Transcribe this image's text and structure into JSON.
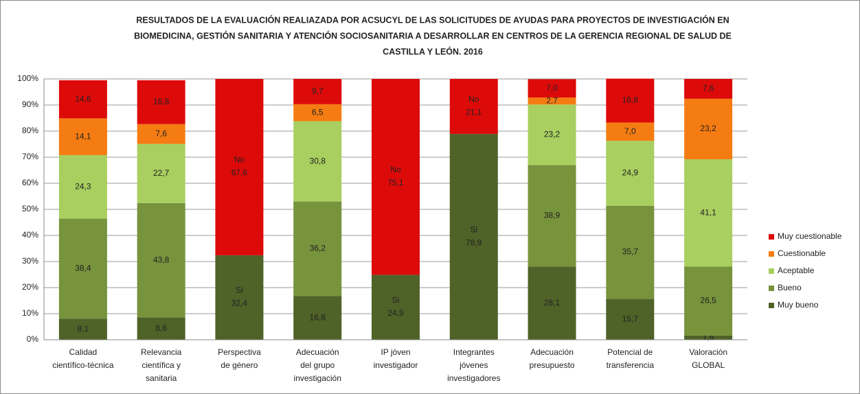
{
  "chart_data": {
    "type": "stacked_bar",
    "title": [
      "RESULTADOS DE LA EVALUACIÓN  REALIAZADA POR ACSUCYL DE LAS SOLICITUDES DE AYUDAS PARA PROYECTOS DE INVESTIGACIÓN EN",
      "BIOMEDICINA, GESTIÓN SANITARIA Y ATENCIÓN SOCIOSANITARIA A DESARROLLAR EN CENTROS DE LA GERENCIA REGIONAL DE SALUD DE",
      "CASTILLA Y LEÓN. 2016"
    ],
    "categories": [
      [
        "Calidad",
        "científico-técnica"
      ],
      [
        "Relevancia",
        "científica y",
        "sanitaria"
      ],
      [
        "Perspectiva",
        "de género"
      ],
      [
        "Adecuación",
        "del grupo",
        "investigación"
      ],
      [
        "IP jóven",
        "investigador"
      ],
      [
        "Integrantes",
        "jóvenes",
        "investigadores"
      ],
      [
        "Adecuación",
        "presupuesto"
      ],
      [
        "Potencial de",
        "transferencia"
      ],
      [
        "Valoración",
        "GLOBAL"
      ]
    ],
    "series": [
      {
        "name": "Muy bueno",
        "color": "#4f6228",
        "values": [
          8.1,
          8.6,
          32.4,
          16.8,
          24.9,
          78.9,
          28.1,
          15.7,
          1.6
        ],
        "value_labels": [
          "8,1",
          "8,6",
          "32,4",
          "16,8",
          "24,9",
          "78,9",
          "28,1",
          "15,7",
          "1,6"
        ],
        "segment_prefixes": [
          null,
          null,
          "Si",
          null,
          "Si",
          "Si",
          null,
          null,
          null
        ]
      },
      {
        "name": "Bueno",
        "color": "#77933c",
        "values": [
          38.4,
          43.8,
          null,
          36.2,
          null,
          null,
          38.9,
          35.7,
          26.5
        ],
        "value_labels": [
          "38,4",
          "43,8",
          null,
          "36,2",
          null,
          null,
          "38,9",
          "35,7",
          "26,5"
        ]
      },
      {
        "name": "Aceptable",
        "color": "#a8cf5f",
        "values": [
          24.3,
          22.7,
          null,
          30.8,
          null,
          null,
          23.2,
          24.9,
          41.1
        ],
        "value_labels": [
          "24,3",
          "22,7",
          null,
          "30,8",
          null,
          null,
          "23,2",
          "24,9",
          "41,1"
        ]
      },
      {
        "name": "Cuestionable",
        "color": "#f57c12",
        "values": [
          14.1,
          7.6,
          null,
          6.5,
          null,
          null,
          2.7,
          7.0,
          23.2
        ],
        "value_labels": [
          "14,1",
          "7,6",
          null,
          "6,5",
          null,
          null,
          "2,7",
          "7,0",
          "23,2"
        ]
      },
      {
        "name": "Muy cuestionable",
        "color": "#dd0a0a",
        "values": [
          14.6,
          16.8,
          67.6,
          9.7,
          75.1,
          21.1,
          7.0,
          16.8,
          7.6
        ],
        "value_labels": [
          "14,6",
          "16,8",
          "67,6",
          "9,7",
          "75,1",
          "21,1",
          "7,0",
          "16,8",
          "7,6"
        ],
        "segment_prefixes": [
          null,
          null,
          "No",
          null,
          "No",
          "No",
          null,
          null,
          null
        ]
      }
    ],
    "ylim": [
      0,
      100
    ],
    "yticks": [
      {
        "value": 0,
        "label": "0%"
      },
      {
        "value": 10,
        "label": "10%"
      },
      {
        "value": 20,
        "label": "20%"
      },
      {
        "value": 30,
        "label": "30%"
      },
      {
        "value": 40,
        "label": "40%"
      },
      {
        "value": 50,
        "label": "50%"
      },
      {
        "value": 60,
        "label": "60%"
      },
      {
        "value": 70,
        "label": "70%"
      },
      {
        "value": 80,
        "label": "80%"
      },
      {
        "value": 90,
        "label": "90%"
      },
      {
        "value": 100,
        "label": "100%"
      }
    ],
    "grid": true,
    "legend": "right"
  }
}
